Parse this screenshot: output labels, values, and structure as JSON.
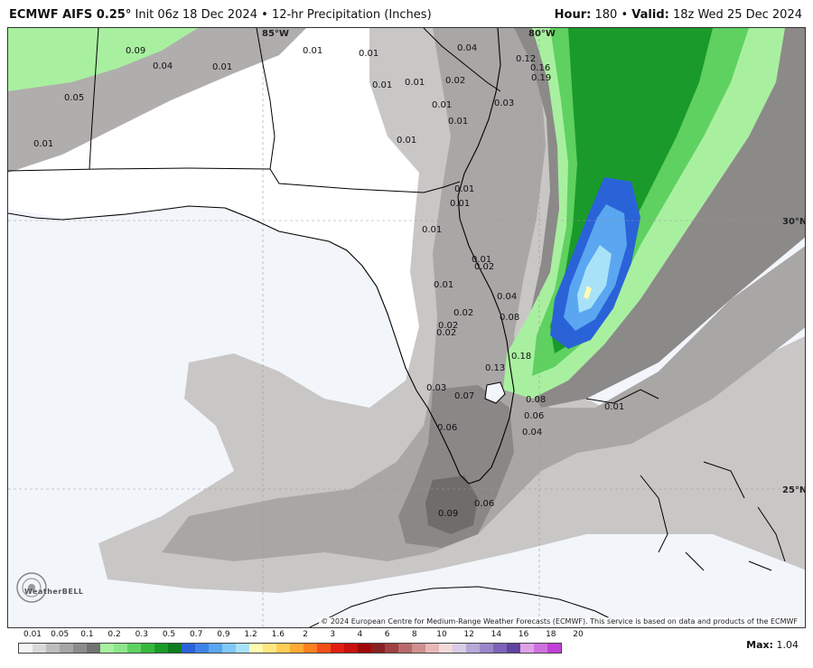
{
  "header": {
    "model": "ECMWF AIFS 0.25",
    "init": "Init 06z 18 Dec 2024",
    "product": "12-hr Precipitation (Inches)",
    "hour_label": "Hour:",
    "hour": "180",
    "valid_label": "Valid:",
    "valid": "18z Wed 25 Dec 2024"
  },
  "map": {
    "lon_labels": [
      "85°W",
      "80°W"
    ],
    "lat_labels": [
      "30°N",
      "25°N"
    ],
    "values": [
      "0.09",
      "0.04",
      "0.01",
      "0.05",
      "0.01",
      "0.01",
      "0.01",
      "0.01",
      "0.01",
      "0.02",
      "0.04",
      "0.12",
      "0.16",
      "0.19",
      "0.01",
      "0.01",
      "0.03",
      "0.01",
      "0.01",
      "0.01",
      "0.01",
      "0.01",
      "0.02",
      "0.01",
      "0.02",
      "0.02",
      "0.02",
      "0.04",
      "0.08",
      "0.18",
      "0.13",
      "0.03",
      "0.07",
      "0.08",
      "0.06",
      "0.06",
      "0.04",
      "0.09",
      "0.06",
      "0.01"
    ],
    "credit": "© 2024 European Centre for Medium-Range Weather Forecasts (ECMWF). This service is based on data and products of the ECMWF",
    "logo": "WeatherBELL"
  },
  "legend": {
    "labels": [
      "0.01",
      "0.05",
      "0.1",
      "0.2",
      "0.3",
      "0.5",
      "0.7",
      "0.9",
      "1.2",
      "1.6",
      "2",
      "3",
      "4",
      "6",
      "8",
      "10",
      "12",
      "14",
      "16",
      "18",
      "20"
    ],
    "colors": [
      "#f5f5f5",
      "#d9d9d9",
      "#bdbdbd",
      "#a6a6a6",
      "#8c8c8c",
      "#737373",
      "#a8f0a0",
      "#8ee68a",
      "#5fd160",
      "#36b83c",
      "#1a9a2a",
      "#0e7d1e",
      "#2a62d8",
      "#3d84e8",
      "#5aa6f0",
      "#80c8f5",
      "#a8e2f8",
      "#fffbb0",
      "#ffe680",
      "#ffcc55",
      "#ffaa33",
      "#ff8020",
      "#f25018",
      "#e02010",
      "#c81010",
      "#a00808",
      "#8a2020",
      "#a04040",
      "#b86a6a",
      "#d09090",
      "#e6b8b8",
      "#f2dada",
      "#d8cce6",
      "#b8a8d8",
      "#9a86c8",
      "#7c64b8",
      "#6044a0",
      "#e0a0e8",
      "#d070e0",
      "#c040d8"
    ],
    "max_label": "Max",
    "max_value": "1.04"
  }
}
